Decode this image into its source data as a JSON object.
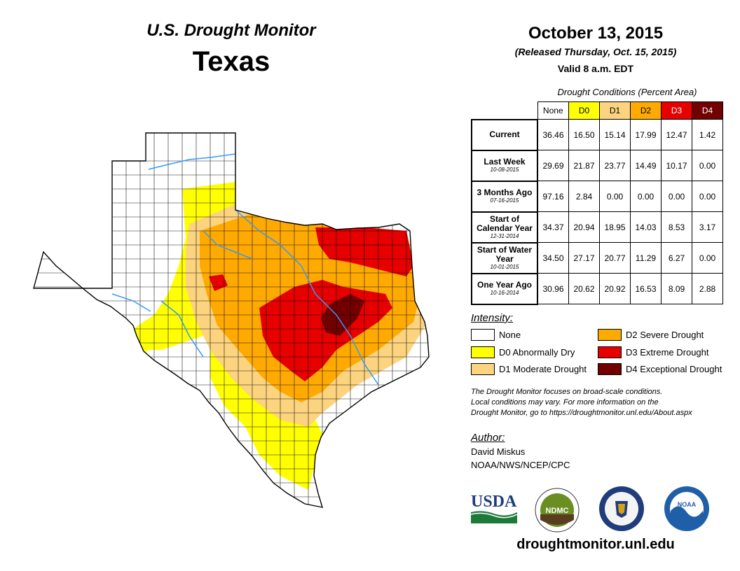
{
  "header": {
    "monitor_title": "U.S. Drought Monitor",
    "state": "Texas",
    "date": "October 13, 2015",
    "released": "(Released Thursday, Oct. 15, 2015)",
    "valid": "Valid 8 a.m. EDT"
  },
  "table": {
    "caption": "Drought Conditions (Percent Area)",
    "columns": [
      "None",
      "D0",
      "D1",
      "D2",
      "D3",
      "D4"
    ],
    "column_colors": [
      "#ffffff",
      "#ffff00",
      "#fcd37f",
      "#ffaa00",
      "#e60000",
      "#730000"
    ],
    "rows": [
      {
        "label": "Current",
        "sub": "",
        "values": [
          "36.46",
          "16.50",
          "15.14",
          "17.99",
          "12.47",
          "1.42"
        ]
      },
      {
        "label": "Last Week",
        "sub": "10-08-2015",
        "values": [
          "29.69",
          "21.87",
          "23.77",
          "14.49",
          "10.17",
          "0.00"
        ]
      },
      {
        "label": "3 Months Ago",
        "sub": "07-16-2015",
        "values": [
          "97.16",
          "2.84",
          "0.00",
          "0.00",
          "0.00",
          "0.00"
        ]
      },
      {
        "label": "Start of Calendar Year",
        "sub": "12-31-2014",
        "values": [
          "34.37",
          "20.94",
          "18.95",
          "14.03",
          "8.53",
          "3.17"
        ]
      },
      {
        "label": "Start of Water Year",
        "sub": "10-01-2015",
        "values": [
          "34.50",
          "27.17",
          "20.77",
          "11.29",
          "6.27",
          "0.00"
        ]
      },
      {
        "label": "One Year Ago",
        "sub": "10-16-2014",
        "values": [
          "30.96",
          "20.62",
          "20.92",
          "16.53",
          "8.09",
          "2.88"
        ]
      }
    ]
  },
  "legend": {
    "title": "Intensity:",
    "items": [
      {
        "label": "None",
        "color": "#ffffff"
      },
      {
        "label": "D0 Abnormally Dry",
        "color": "#ffff00"
      },
      {
        "label": "D1 Moderate Drought",
        "color": "#fcd37f"
      },
      {
        "label": "D2 Severe Drought",
        "color": "#ffaa00"
      },
      {
        "label": "D3 Extreme Drought",
        "color": "#e60000"
      },
      {
        "label": "D4 Exceptional Drought",
        "color": "#730000"
      }
    ]
  },
  "note": {
    "line1": "The Drought Monitor focuses on broad-scale conditions.",
    "line2": "Local conditions may vary. For more information on the",
    "line3": "Drought Monitor, go to https://droughtmonitor.unl.edu/About.aspx"
  },
  "author": {
    "title": "Author:",
    "name": "David Miskus",
    "org": "NOAA/NWS/NCEP/CPC"
  },
  "logos": {
    "usda": "USDA",
    "ndmc": "NDMC",
    "noaa": "NOAA"
  },
  "website": "droughtmonitor.unl.edu",
  "colors": {
    "river": "#3399ff",
    "county_line": "#000000"
  }
}
